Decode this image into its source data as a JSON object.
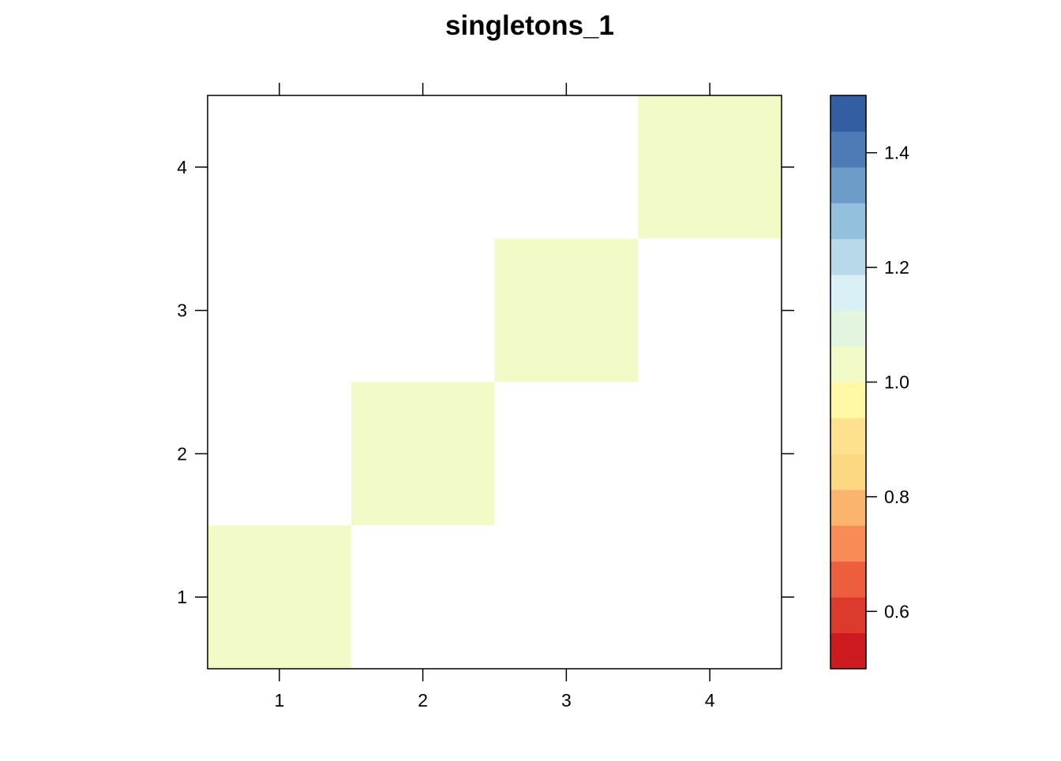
{
  "chart_data": {
    "type": "heatmap",
    "title": "singletons_1",
    "xlabel": "",
    "ylabel": "",
    "x_categories": [
      "1",
      "2",
      "3",
      "4"
    ],
    "y_categories": [
      "1",
      "2",
      "3",
      "4"
    ],
    "cells": [
      {
        "x": "1",
        "y": "1",
        "value": 1.0
      },
      {
        "x": "2",
        "y": "2",
        "value": 1.0
      },
      {
        "x": "3",
        "y": "3",
        "value": 1.0
      },
      {
        "x": "4",
        "y": "4",
        "value": 1.0
      }
    ],
    "empty_cell_color": "#ffffff",
    "colorbar": {
      "range": [
        0.5,
        1.5
      ],
      "ticks": [
        0.6,
        0.8,
        1.0,
        1.2,
        1.4
      ],
      "tick_labels": [
        "0.6",
        "0.8",
        "1.0",
        "1.2",
        "1.4"
      ],
      "colors": [
        "#cc1a1f",
        "#db3a2c",
        "#ed5e3f",
        "#f98b56",
        "#fab46e",
        "#fdd883",
        "#fde18e",
        "#fff8a5",
        "#f2fbc8",
        "#e4f5df",
        "#d9f0f6",
        "#b7d9ea",
        "#93c0dc",
        "#6b9dc8",
        "#4d7bb6",
        "#335fa2"
      ]
    },
    "grid": false,
    "legend_placement": "right"
  }
}
